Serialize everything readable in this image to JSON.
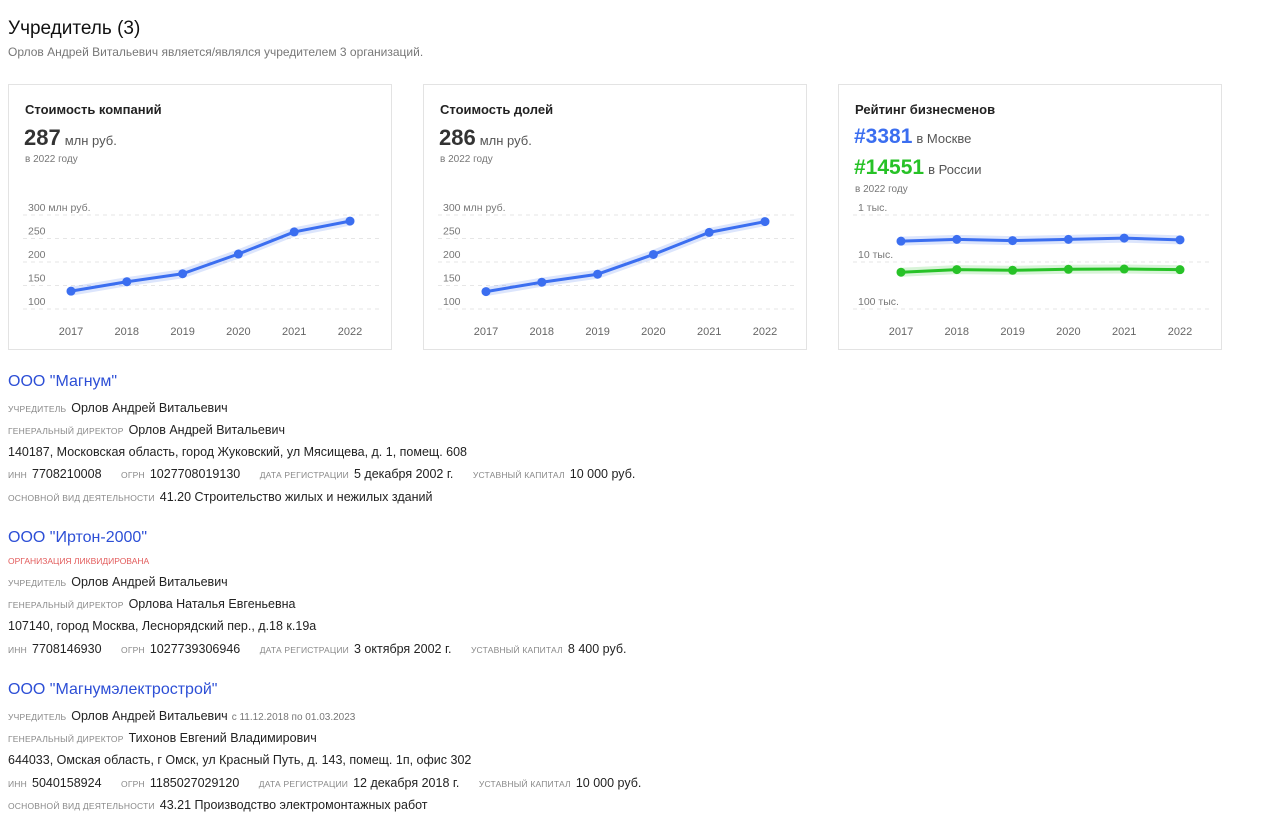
{
  "section": {
    "title": "Учредитель (3)",
    "subtitle": "Орлов Андрей Витальевич является/являлся учредителем 3 организаций."
  },
  "cards": {
    "company_value": {
      "title": "Стоимость компаний",
      "value": "287",
      "unit": "млн руб.",
      "year_note": "в 2022 году"
    },
    "shares_value": {
      "title": "Стоимость долей",
      "value": "286",
      "unit": "млн руб.",
      "year_note": "в 2022 году"
    },
    "rating": {
      "title": "Рейтинг бизнесменов",
      "moscow_rank": "#3381",
      "moscow_label": "в Москве",
      "russia_rank": "#14551",
      "russia_label": "в России",
      "year_note": "в 2022 году"
    }
  },
  "chart_data": [
    {
      "type": "line",
      "x": [
        "2017",
        "2018",
        "2019",
        "2020",
        "2021",
        "2022"
      ],
      "series": [
        {
          "values": [
            138,
            158,
            175,
            217,
            264,
            287
          ]
        }
      ],
      "yticks": [
        "300 млн руб.",
        "250",
        "200",
        "150",
        "100"
      ],
      "ytick_values": [
        300,
        250,
        200,
        150,
        100
      ],
      "ylim": [
        100,
        300
      ],
      "color": "#3b6ef0",
      "grid": true
    },
    {
      "type": "line",
      "x": [
        "2017",
        "2018",
        "2019",
        "2020",
        "2021",
        "2022"
      ],
      "series": [
        {
          "values": [
            137,
            157,
            174,
            216,
            263,
            286
          ]
        }
      ],
      "yticks": [
        "300 млн руб.",
        "250",
        "200",
        "150",
        "100"
      ],
      "ytick_values": [
        300,
        250,
        200,
        150,
        100
      ],
      "ylim": [
        100,
        300
      ],
      "color": "#3b6ef0",
      "grid": true
    },
    {
      "type": "line",
      "x": [
        "2017",
        "2018",
        "2019",
        "2020",
        "2021",
        "2022"
      ],
      "series": [
        {
          "values": [
            3600,
            3300,
            3500,
            3300,
            3100,
            3381
          ],
          "color": "#3b6ef0"
        },
        {
          "values": [
            16500,
            14500,
            15000,
            14300,
            14100,
            14551
          ],
          "color": "#27c227"
        }
      ],
      "yticks": [
        "1 тыс.",
        "10 тыс.",
        "100 тыс."
      ],
      "ytick_values": [
        1000,
        10000,
        100000
      ],
      "scale": "log-reversed",
      "grid": true
    }
  ],
  "companies": [
    {
      "name": "ООО \"Магнум\"",
      "founder_label": "учредитель",
      "founder": "Орлов Андрей Витальевич",
      "director_label": "генеральный директор",
      "director": "Орлов Андрей Витальевич",
      "address": "140187, Московская область, город Жуковский, ул Мясищева, д. 1, помещ. 608",
      "inn_label": "инн",
      "inn": "7708210008",
      "ogrn_label": "огрн",
      "ogrn": "1027708019130",
      "reg_label": "дата регистрации",
      "reg_date": "5 декабря 2002 г.",
      "capital_label": "уставный капитал",
      "capital": "10 000 руб.",
      "activity_label": "основной вид деятельности",
      "activity": "41.20 Строительство жилых и нежилых зданий"
    },
    {
      "name": "ООО \"Иртон-2000\"",
      "status": "организация ликвидирована",
      "founder_label": "учредитель",
      "founder": "Орлов Андрей Витальевич",
      "director_label": "генеральный директор",
      "director": "Орлова Наталья Евгеньевна",
      "address": "107140, город Москва, Леснорядский пер., д.18 к.19а",
      "inn_label": "инн",
      "inn": "7708146930",
      "ogrn_label": "огрн",
      "ogrn": "1027739306946",
      "reg_label": "дата регистрации",
      "reg_date": "3 октября 2002 г.",
      "capital_label": "уставный капитал",
      "capital": "8 400 руб."
    },
    {
      "name": "ООО \"Магнумэлектрострой\"",
      "founder_label": "учредитель",
      "founder": "Орлов Андрей Витальевич",
      "founder_period": "с 11.12.2018 по 01.03.2023",
      "director_label": "генеральный директор",
      "director": "Тихонов Евгений Владимирович",
      "address": "644033, Омская область, г Омск, ул Красный Путь, д. 143, помещ. 1п, офис 302",
      "inn_label": "инн",
      "inn": "5040158924",
      "ogrn_label": "огрн",
      "ogrn": "1185027029120",
      "reg_label": "дата регистрации",
      "reg_date": "12 декабря 2018 г.",
      "capital_label": "уставный капитал",
      "capital": "10 000 руб.",
      "activity_label": "основной вид деятельности",
      "activity": "43.21 Производство электромонтажных работ"
    }
  ]
}
